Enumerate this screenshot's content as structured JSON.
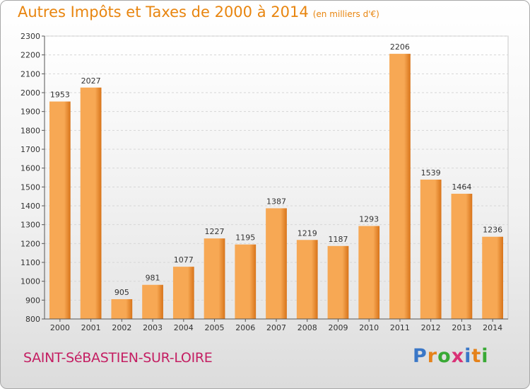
{
  "header": {
    "title": "Autres Impôts et Taxes de 2000 à 2014",
    "unit": "(en milliers d'€)"
  },
  "footer": {
    "place": "SAINT-SéBASTIEN-SUR-LOIRE",
    "logo": [
      "P",
      "r",
      "o",
      "x",
      "i",
      "t",
      "i"
    ]
  },
  "colors": {
    "title": "#e8850f",
    "bar_light": "#f7a854",
    "bar_dark": "#d8741a",
    "place": "#c41e62",
    "logo": [
      "#3a77c7",
      "#e5821a",
      "#39a935",
      "#d93176",
      "#3a77c7",
      "#e5821a",
      "#39a935"
    ]
  },
  "chart_data": {
    "type": "bar",
    "categories": [
      "2000",
      "2001",
      "2002",
      "2003",
      "2004",
      "2005",
      "2006",
      "2007",
      "2008",
      "2009",
      "2010",
      "2011",
      "2012",
      "2013",
      "2014"
    ],
    "values": [
      1953,
      2027,
      905,
      981,
      1077,
      1227,
      1195,
      1387,
      1219,
      1187,
      1293,
      2206,
      1539,
      1464,
      1236
    ],
    "ylim": [
      800,
      2300
    ],
    "ytick_step": 100,
    "grid": true,
    "data_labels": true
  }
}
